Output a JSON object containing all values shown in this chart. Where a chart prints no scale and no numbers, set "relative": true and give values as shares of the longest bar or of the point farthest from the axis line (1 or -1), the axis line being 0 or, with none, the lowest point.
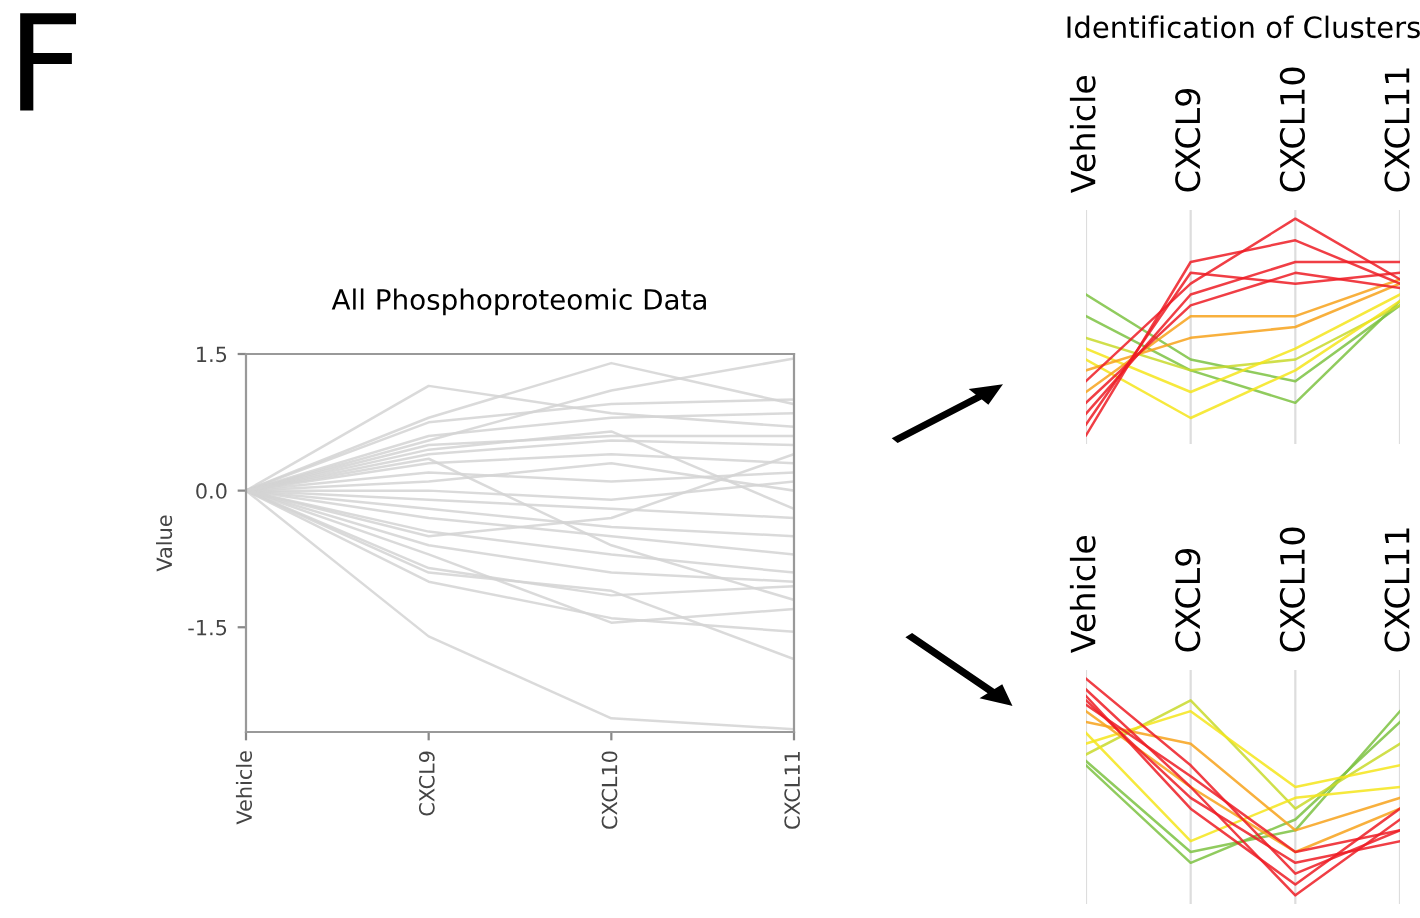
{
  "chart_data": [
    {
      "type": "line",
      "title": "All Phosphoproteomic Data",
      "ylabel": "Value",
      "annotations": [
        "F"
      ],
      "categories": [
        "Vehicle",
        "CXCL9",
        "CXCL10",
        "CXCL11"
      ],
      "ylim": [
        -2.65,
        1.5
      ],
      "yticks": [
        -1.5,
        {
          "value": 0,
          "label": "0.0"
        },
        1.5
      ],
      "grid": false,
      "legend": false,
      "series": [
        {
          "color": "#d3d3d3",
          "values": [
            0,
            1.15,
            0.85,
            0.7
          ]
        },
        {
          "color": "#d3d3d3",
          "values": [
            0,
            0.8,
            1.4,
            0.95
          ]
        },
        {
          "color": "#d3d3d3",
          "values": [
            0,
            0.55,
            1.1,
            1.45
          ]
        },
        {
          "color": "#d3d3d3",
          "values": [
            0,
            0.75,
            0.95,
            1.0
          ]
        },
        {
          "color": "#d3d3d3",
          "values": [
            0,
            0.6,
            0.8,
            0.85
          ]
        },
        {
          "color": "#d3d3d3",
          "values": [
            0,
            0.5,
            0.6,
            0.6
          ]
        },
        {
          "color": "#d3d3d3",
          "values": [
            0,
            0.4,
            0.55,
            0.5
          ]
        },
        {
          "color": "#d3d3d3",
          "values": [
            0,
            0.3,
            0.4,
            0.3
          ]
        },
        {
          "color": "#d3d3d3",
          "values": [
            0,
            0.2,
            0.1,
            0.2
          ]
        },
        {
          "color": "#d3d3d3",
          "values": [
            0,
            0.1,
            0.3,
            0.0
          ]
        },
        {
          "color": "#d3d3d3",
          "values": [
            0,
            0.0,
            -0.1,
            0.1
          ]
        },
        {
          "color": "#d3d3d3",
          "values": [
            0,
            -0.1,
            -0.2,
            -0.3
          ]
        },
        {
          "color": "#d3d3d3",
          "values": [
            0,
            -0.2,
            -0.4,
            -0.5
          ]
        },
        {
          "color": "#d3d3d3",
          "values": [
            0,
            -0.3,
            -0.5,
            -0.7
          ]
        },
        {
          "color": "#d3d3d3",
          "values": [
            0,
            -0.45,
            -0.7,
            -0.9
          ]
        },
        {
          "color": "#d3d3d3",
          "values": [
            0,
            -0.6,
            -0.9,
            -1.0
          ]
        },
        {
          "color": "#d3d3d3",
          "values": [
            0,
            -0.85,
            -1.15,
            -1.05
          ]
        },
        {
          "color": "#d3d3d3",
          "values": [
            0,
            -1.0,
            -1.4,
            -1.55
          ]
        },
        {
          "color": "#d3d3d3",
          "values": [
            0,
            -0.9,
            -1.1,
            -1.85
          ]
        },
        {
          "color": "#d3d3d3",
          "values": [
            0,
            -1.6,
            -2.5,
            -2.62
          ]
        },
        {
          "color": "#d3d3d3",
          "values": [
            0,
            -0.7,
            -1.45,
            -1.3
          ]
        },
        {
          "color": "#d3d3d3",
          "values": [
            0,
            0.45,
            0.65,
            -0.2
          ]
        },
        {
          "color": "#d3d3d3",
          "values": [
            0,
            -0.5,
            -0.3,
            0.4
          ]
        },
        {
          "color": "#d3d3d3",
          "values": [
            0,
            0.35,
            -0.6,
            -1.2
          ]
        }
      ]
    },
    {
      "type": "line",
      "title": "Identification of Clusters",
      "relative": true,
      "grid": "x",
      "legend": false,
      "categories": [
        "Vehicle",
        "CXCL9",
        "CXCL10",
        "CXCL11"
      ],
      "series": [
        {
          "color": "#7cc242",
          "values": [
            0.65,
            0.35,
            0.25,
            0.6
          ]
        },
        {
          "color": "#7cc242",
          "values": [
            0.55,
            0.3,
            0.15,
            0.62
          ]
        },
        {
          "color": "#c8d92b",
          "values": [
            0.45,
            0.3,
            0.35,
            0.6
          ]
        },
        {
          "color": "#f5e51b",
          "values": [
            0.4,
            0.2,
            0.4,
            0.65
          ]
        },
        {
          "color": "#f5e51b",
          "values": [
            0.35,
            0.08,
            0.3,
            0.62
          ]
        },
        {
          "color": "#f7a21b",
          "values": [
            0.3,
            0.45,
            0.5,
            0.7
          ]
        },
        {
          "color": "#f7a21b",
          "values": [
            0.2,
            0.55,
            0.55,
            0.72
          ]
        },
        {
          "color": "#ed1c24",
          "values": [
            0.05,
            0.75,
            0.7,
            0.75
          ]
        },
        {
          "color": "#ed1c24",
          "values": [
            0.0,
            0.8,
            0.9,
            0.7
          ]
        },
        {
          "color": "#ed1c24",
          "values": [
            0.15,
            0.6,
            0.75,
            0.68
          ]
        },
        {
          "color": "#ed1c24",
          "values": [
            0.25,
            0.7,
            1.0,
            0.72
          ]
        },
        {
          "color": "#ed1c24",
          "values": [
            0.1,
            0.65,
            0.8,
            0.8
          ]
        }
      ]
    },
    {
      "type": "line",
      "relative": true,
      "grid": "x",
      "legend": false,
      "categories": [
        "Vehicle",
        "CXCL9",
        "CXCL10",
        "CXCL11"
      ],
      "series": [
        {
          "color": "#7cc242",
          "values": [
            0.6,
            0.15,
            0.35,
            0.8
          ]
        },
        {
          "color": "#7cc242",
          "values": [
            0.62,
            0.2,
            0.3,
            0.85
          ]
        },
        {
          "color": "#c8d92b",
          "values": [
            0.65,
            0.9,
            0.4,
            0.7
          ]
        },
        {
          "color": "#f5e51b",
          "values": [
            0.7,
            0.85,
            0.5,
            0.6
          ]
        },
        {
          "color": "#f5e51b",
          "values": [
            0.75,
            0.25,
            0.45,
            0.5
          ]
        },
        {
          "color": "#f7a21b",
          "values": [
            0.8,
            0.7,
            0.3,
            0.45
          ]
        },
        {
          "color": "#f7a21b",
          "values": [
            0.85,
            0.5,
            0.2,
            0.4
          ]
        },
        {
          "color": "#ed1c24",
          "values": [
            1.0,
            0.6,
            0.1,
            0.3
          ]
        },
        {
          "color": "#ed1c24",
          "values": [
            0.95,
            0.5,
            0.0,
            0.35
          ]
        },
        {
          "color": "#ed1c24",
          "values": [
            0.9,
            0.45,
            0.15,
            0.25
          ]
        },
        {
          "color": "#ed1c24",
          "values": [
            0.88,
            0.55,
            0.2,
            0.3
          ]
        },
        {
          "color": "#ed1c24",
          "values": [
            0.92,
            0.4,
            0.05,
            0.4
          ]
        }
      ]
    }
  ]
}
